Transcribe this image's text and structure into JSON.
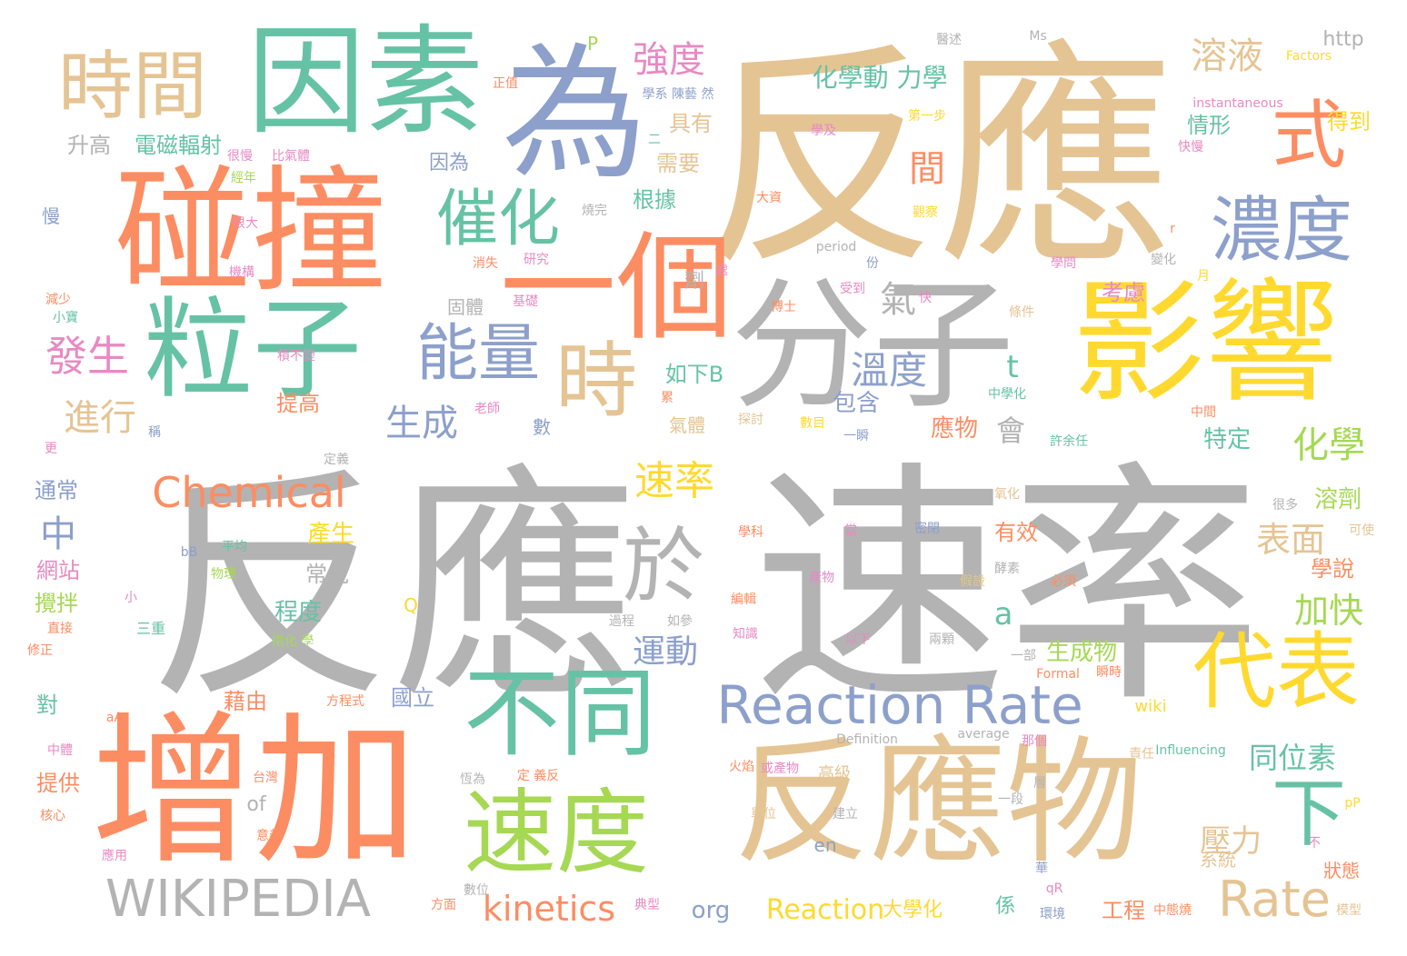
{
  "palette": {
    "gray": "#b3b3b3",
    "tan": "#e5c494",
    "orange": "#fc8d62",
    "teal": "#66c2a5",
    "blue": "#8da0cb",
    "yellow": "#ffd92f",
    "green": "#a6d854",
    "pink": "#e78ac3"
  },
  "words": [
    {
      "text": "反應",
      "color": "tan"
    },
    {
      "text": "速率",
      "color": "gray"
    },
    {
      "text": "反應",
      "color": "gray"
    },
    {
      "text": "為",
      "color": "blue"
    },
    {
      "text": "因素",
      "color": "teal"
    },
    {
      "text": "碰撞",
      "color": "orange"
    },
    {
      "text": "一個",
      "color": "orange"
    },
    {
      "text": "分子",
      "color": "gray"
    },
    {
      "text": "影響",
      "color": "yellow"
    },
    {
      "text": "粒子",
      "color": "teal"
    },
    {
      "text": "增加",
      "color": "orange"
    },
    {
      "text": "反應物",
      "color": "tan"
    },
    {
      "text": "時間",
      "color": "tan"
    },
    {
      "text": "式",
      "color": "orange"
    },
    {
      "text": "濃度",
      "color": "blue"
    },
    {
      "text": "催化",
      "color": "teal"
    },
    {
      "text": "能量",
      "color": "blue"
    },
    {
      "text": "時",
      "color": "tan"
    },
    {
      "text": "不同",
      "color": "teal"
    },
    {
      "text": "代表",
      "color": "yellow"
    },
    {
      "text": "速度",
      "color": "green"
    },
    {
      "text": "於",
      "color": "gray"
    },
    {
      "text": "下",
      "color": "teal"
    },
    {
      "text": "Reaction Rate",
      "color": "blue"
    },
    {
      "text": "Chemical",
      "color": "orange"
    },
    {
      "text": "WIKIPEDIA",
      "color": "gray"
    },
    {
      "text": "Rate",
      "color": "tan"
    },
    {
      "text": "kinetics",
      "color": "orange"
    },
    {
      "text": "Reaction",
      "color": "yellow"
    },
    {
      "text": "速率",
      "color": "yellow"
    },
    {
      "text": "溶液",
      "color": "tan"
    },
    {
      "text": "強度",
      "color": "pink"
    },
    {
      "text": "化學動 力學",
      "color": "teal"
    },
    {
      "text": "發生",
      "color": "pink"
    },
    {
      "text": "進行",
      "color": "tan"
    },
    {
      "text": "生成",
      "color": "blue"
    },
    {
      "text": "溫度",
      "color": "blue"
    },
    {
      "text": "化學",
      "color": "green"
    },
    {
      "text": "表面",
      "color": "tan"
    },
    {
      "text": "加快",
      "color": "green"
    },
    {
      "text": "運動",
      "color": "blue"
    },
    {
      "text": "同位素",
      "color": "teal"
    },
    {
      "text": "壓力",
      "color": "tan"
    },
    {
      "text": "氣",
      "color": "gray"
    },
    {
      "text": "間",
      "color": "orange"
    },
    {
      "text": "中",
      "color": "blue"
    },
    {
      "text": "會",
      "color": "gray"
    },
    {
      "text": "a",
      "color": "teal"
    },
    {
      "text": "t",
      "color": "teal"
    },
    {
      "text": "產生",
      "color": "yellow"
    },
    {
      "text": "常見",
      "color": "gray"
    },
    {
      "text": "程度",
      "color": "teal"
    },
    {
      "text": "有效",
      "color": "orange"
    },
    {
      "text": "生成物",
      "color": "green"
    },
    {
      "text": "溶劑",
      "color": "green"
    },
    {
      "text": "學說",
      "color": "orange"
    },
    {
      "text": "特定",
      "color": "teal"
    },
    {
      "text": "包含",
      "color": "blue"
    },
    {
      "text": "應物",
      "color": "orange"
    },
    {
      "text": "如下B",
      "color": "teal"
    },
    {
      "text": "提高",
      "color": "orange"
    },
    {
      "text": "升高",
      "color": "gray"
    },
    {
      "text": "電磁輻射",
      "color": "teal"
    },
    {
      "text": "因為",
      "color": "blue"
    },
    {
      "text": "需要",
      "color": "tan"
    },
    {
      "text": "根據",
      "color": "teal"
    },
    {
      "text": "具有",
      "color": "tan"
    },
    {
      "text": "情形",
      "color": "teal"
    },
    {
      "text": "得到",
      "color": "yellow"
    },
    {
      "text": "考慮",
      "color": "pink"
    },
    {
      "text": "網站",
      "color": "pink"
    },
    {
      "text": "攪拌",
      "color": "green"
    },
    {
      "text": "通常",
      "color": "blue"
    },
    {
      "text": "對",
      "color": "teal"
    },
    {
      "text": "提供",
      "color": "orange"
    },
    {
      "text": "藉由",
      "color": "orange"
    },
    {
      "text": "國立",
      "color": "blue"
    },
    {
      "text": "工程",
      "color": "orange"
    },
    {
      "text": "大學化",
      "color": "yellow"
    },
    {
      "text": "org",
      "color": "blue"
    },
    {
      "text": "of",
      "color": "gray"
    },
    {
      "text": "en",
      "color": "blue"
    },
    {
      "text": "wiki",
      "color": "yellow"
    },
    {
      "text": "http",
      "color": "gray"
    },
    {
      "text": "P",
      "color": "green"
    },
    {
      "text": "Q",
      "color": "yellow"
    },
    {
      "text": "氣體",
      "color": "tan"
    },
    {
      "text": "數",
      "color": "blue"
    },
    {
      "text": "固體",
      "color": "gray"
    },
    {
      "text": "慢",
      "color": "blue"
    },
    {
      "text": "係",
      "color": "teal"
    },
    {
      "text": "狀態",
      "color": "orange"
    },
    {
      "text": "系統",
      "color": "tan"
    },
    {
      "text": "高級",
      "color": "tan"
    },
    {
      "text": "Influencing",
      "color": "teal"
    },
    {
      "text": "Definition",
      "color": "gray"
    },
    {
      "text": "average",
      "color": "gray"
    },
    {
      "text": "instantaneous",
      "color": "pink"
    },
    {
      "text": "Factors",
      "color": "yellow"
    },
    {
      "text": "Formal",
      "color": "orange"
    },
    {
      "text": "period",
      "color": "gray"
    },
    {
      "text": "正值",
      "color": "orange"
    },
    {
      "text": "學系 陳藝 然",
      "color": "blue"
    },
    {
      "text": "第一步",
      "color": "yellow"
    },
    {
      "text": "學及",
      "color": "pink"
    },
    {
      "text": "快慢",
      "color": "pink"
    },
    {
      "text": "大資",
      "color": "orange"
    },
    {
      "text": "觀察",
      "color": "yellow"
    },
    {
      "text": "學問",
      "color": "pink"
    },
    {
      "text": "變化",
      "color": "gray"
    },
    {
      "text": "研究",
      "color": "pink"
    },
    {
      "text": "消失",
      "color": "orange"
    },
    {
      "text": "基礎",
      "color": "pink"
    },
    {
      "text": "博士",
      "color": "orange"
    },
    {
      "text": "受到",
      "color": "pink"
    },
    {
      "text": "快",
      "color": "pink"
    },
    {
      "text": "條件",
      "color": "tan"
    },
    {
      "text": "中學化",
      "color": "teal"
    },
    {
      "text": "老師",
      "color": "pink"
    },
    {
      "text": "探討",
      "color": "tan"
    },
    {
      "text": "數目",
      "color": "yellow"
    },
    {
      "text": "一瞬",
      "color": "blue"
    },
    {
      "text": "許余任",
      "color": "teal"
    },
    {
      "text": "中間",
      "color": "orange"
    },
    {
      "text": "定義",
      "color": "gray"
    },
    {
      "text": "氧化",
      "color": "tan"
    },
    {
      "text": "很多",
      "color": "gray"
    },
    {
      "text": "可使",
      "color": "tan"
    },
    {
      "text": "學科",
      "color": "orange"
    },
    {
      "text": "當",
      "color": "pink"
    },
    {
      "text": "密閉",
      "color": "blue"
    },
    {
      "text": "酵素",
      "color": "gray"
    },
    {
      "text": "產物",
      "color": "pink"
    },
    {
      "text": "假設",
      "color": "tan"
    },
    {
      "text": "必須",
      "color": "orange"
    },
    {
      "text": "雜",
      "color": "gray"
    },
    {
      "text": "平均",
      "color": "teal"
    },
    {
      "text": "物理",
      "color": "green"
    },
    {
      "text": "bB",
      "color": "blue"
    },
    {
      "text": "小",
      "color": "pink"
    },
    {
      "text": "編輯",
      "color": "orange"
    },
    {
      "text": "過程",
      "color": "gray"
    },
    {
      "text": "如參",
      "color": "gray"
    },
    {
      "text": "知識",
      "color": "pink"
    },
    {
      "text": "以下",
      "color": "pink"
    },
    {
      "text": "兩顆",
      "color": "gray"
    },
    {
      "text": "一部",
      "color": "gray"
    },
    {
      "text": "瞬時",
      "color": "orange"
    },
    {
      "text": "三重",
      "color": "teal"
    },
    {
      "text": "指化 學",
      "color": "green"
    },
    {
      "text": "方程式",
      "color": "orange"
    },
    {
      "text": "aA",
      "color": "orange"
    },
    {
      "text": "中體",
      "color": "pink"
    },
    {
      "text": "火焰",
      "color": "orange"
    },
    {
      "text": "或產物",
      "color": "pink"
    },
    {
      "text": "台灣",
      "color": "orange"
    },
    {
      "text": "恆為",
      "color": "gray"
    },
    {
      "text": "定 義反",
      "color": "orange"
    },
    {
      "text": "責任",
      "color": "tan"
    },
    {
      "text": "那個",
      "color": "pink"
    },
    {
      "text": "層",
      "color": "gray"
    },
    {
      "text": "單位",
      "color": "tan"
    },
    {
      "text": "建立",
      "color": "gray"
    },
    {
      "text": "一段",
      "color": "gray"
    },
    {
      "text": "核心",
      "color": "orange"
    },
    {
      "text": "意義",
      "color": "orange"
    },
    {
      "text": "應用",
      "color": "pink"
    },
    {
      "text": "方面",
      "color": "orange"
    },
    {
      "text": "典型",
      "color": "pink"
    },
    {
      "text": "環境",
      "color": "blue"
    },
    {
      "text": "中態燒",
      "color": "orange"
    },
    {
      "text": "模型",
      "color": "tan"
    },
    {
      "text": "華",
      "color": "blue"
    },
    {
      "text": "qR",
      "color": "pink"
    },
    {
      "text": "不",
      "color": "pink"
    },
    {
      "text": "pP",
      "color": "yellow"
    },
    {
      "text": "更",
      "color": "pink"
    },
    {
      "text": "稱",
      "color": "blue"
    },
    {
      "text": "直接",
      "color": "orange"
    },
    {
      "text": "修正",
      "color": "orange"
    },
    {
      "text": "減少",
      "color": "orange"
    },
    {
      "text": "小寶",
      "color": "teal"
    },
    {
      "text": "機構",
      "color": "pink"
    },
    {
      "text": "很大",
      "color": "pink"
    },
    {
      "text": "很慢",
      "color": "pink"
    },
    {
      "text": "經年",
      "color": "green"
    },
    {
      "text": "比氣體",
      "color": "pink"
    },
    {
      "text": "積不變",
      "color": "pink"
    },
    {
      "text": "燒完",
      "color": "gray"
    },
    {
      "text": "二",
      "color": "teal"
    },
    {
      "text": "劑",
      "color": "gray"
    },
    {
      "text": "處",
      "color": "pink"
    },
    {
      "text": "份",
      "color": "blue"
    },
    {
      "text": "累",
      "color": "orange"
    },
    {
      "text": "月",
      "color": "yellow"
    },
    {
      "text": "r",
      "color": "orange"
    },
    {
      "text": "Ms",
      "color": "gray"
    },
    {
      "text": "醫述",
      "color": "gray"
    },
    {
      "text": "數位",
      "color": "gray"
    }
  ]
}
